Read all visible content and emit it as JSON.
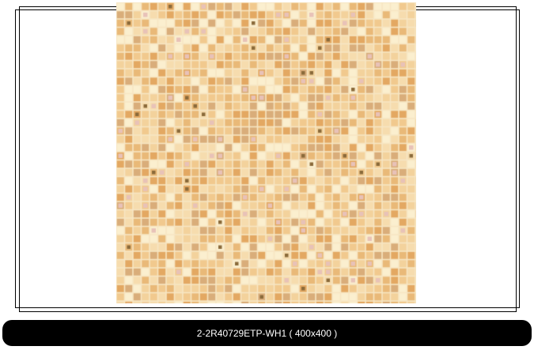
{
  "viewer": {
    "caption": "2-2R40729ETP-WH1 ( 400x400 )",
    "image_alt": "beige mosaic tile product image",
    "tile_colors": [
      "#e9b978",
      "#f1c98e",
      "#f6dcae",
      "#fbefcf",
      "#e3a862",
      "#f3d29c",
      "#d9ad7a"
    ]
  }
}
